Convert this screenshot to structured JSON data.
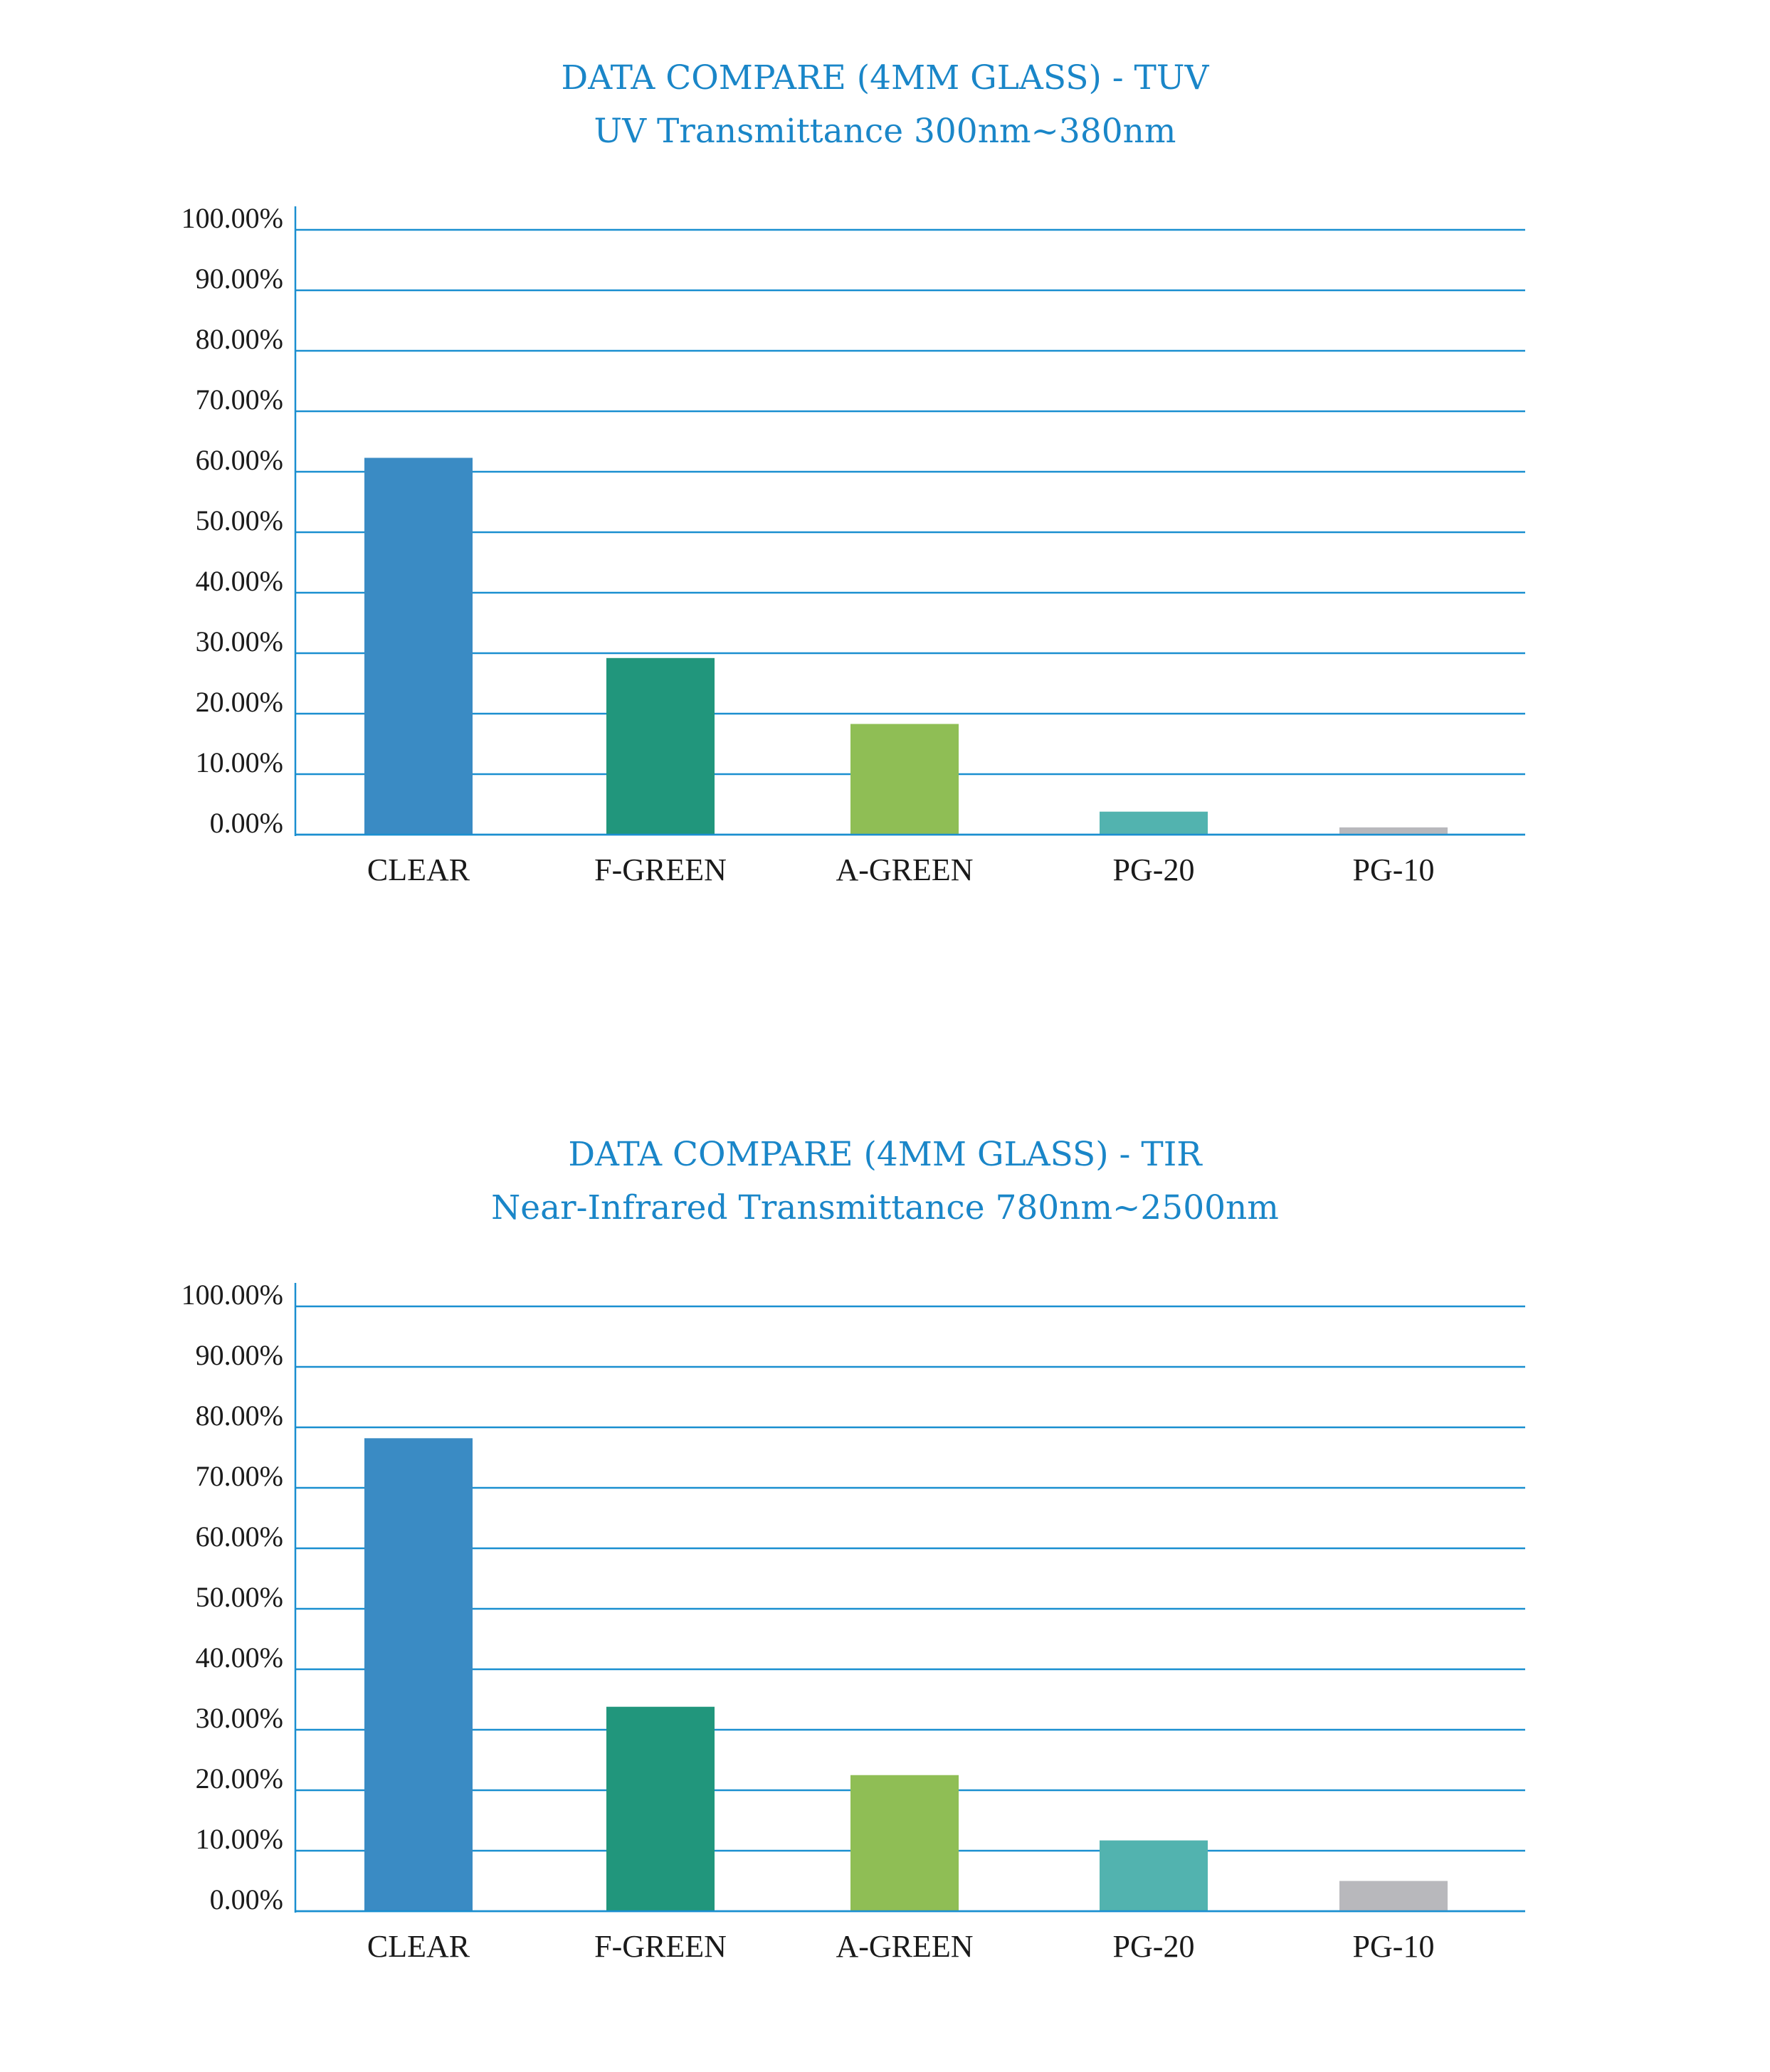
{
  "colors": {
    "title": "#1a86c8",
    "gridline": "#1a8fd0",
    "CLEAR": "#3a8bc4",
    "F-GREEN": "#21967c",
    "A-GREEN": "#8fbe55",
    "PG-20": "#52b3af",
    "PG-10": "#b8b8bc"
  },
  "chart_data": [
    {
      "type": "bar",
      "title": "DATA COMPARE (4MM GLASS) - TUV",
      "subtitle": "UV Transmittance 300nm~380nm",
      "categories": [
        "CLEAR",
        "F-GREEN",
        "A-GREEN",
        "PG-20",
        "PG-10"
      ],
      "values": [
        62.3,
        29.2,
        18.3,
        3.8,
        1.2
      ],
      "yticks": [
        "100.00%",
        "90.00%",
        "80.00%",
        "70.00%",
        "60.00%",
        "50.00%",
        "40.00%",
        "30.00%",
        "20.00%",
        "10.00%",
        "0.00%"
      ],
      "ylim": [
        0,
        100
      ],
      "grid": true
    },
    {
      "type": "bar",
      "title": "DATA COMPARE (4MM GLASS) - TIR",
      "subtitle": "Near-Infrared Transmittance 780nm~2500nm",
      "categories": [
        "CLEAR",
        "F-GREEN",
        "A-GREEN",
        "PG-20",
        "PG-10"
      ],
      "values": [
        78.2,
        33.8,
        22.5,
        11.7,
        5.0
      ],
      "yticks": [
        "100.00%",
        "90.00%",
        "80.00%",
        "70.00%",
        "60.00%",
        "50.00%",
        "40.00%",
        "30.00%",
        "20.00%",
        "10.00%",
        "0.00%"
      ],
      "ylim": [
        0,
        100
      ],
      "grid": true
    }
  ]
}
